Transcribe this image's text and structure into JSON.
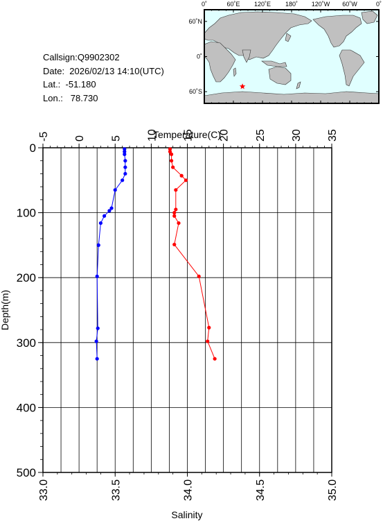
{
  "info": {
    "callsign": "Callsign:Q9902302",
    "date": "Date:  2026/02/13 14:10(UTC)",
    "lat": "Lat.:  -51.180",
    "lon": "Lon.:   78.730"
  },
  "map": {
    "top_labels": [
      "0˚",
      "60˚E",
      "120˚E",
      "180˚",
      "120˚W",
      "60˚W",
      "0˚"
    ],
    "side_labels": [
      "60˚N",
      "0˚",
      "60˚S"
    ],
    "marker": {
      "lat": -51.18,
      "lon": 78.73,
      "color": "#ff0000"
    },
    "land_color": "#c0c0c0",
    "ocean_color": "#e0ffff"
  },
  "chart_data": {
    "type": "line",
    "xlabel_top": "Temperature(C)",
    "xlabel_bottom": "Salinity",
    "ylabel": "Depth(m)",
    "temp_ticks": [
      "-5",
      "0",
      "5",
      "10",
      "15",
      "20",
      "25",
      "30",
      "35"
    ],
    "sal_ticks": [
      "33.0",
      "33.5",
      "34.0",
      "34.5",
      "35.0"
    ],
    "depth_ticks": [
      "0",
      "100",
      "200",
      "300",
      "400",
      "500"
    ],
    "temp_range": [
      -5,
      35
    ],
    "sal_range": [
      33.0,
      35.0
    ],
    "depth_range": [
      0,
      500
    ],
    "series": [
      {
        "axis": "temperature",
        "color": "#0000ff",
        "depth": [
          2,
          6,
          10,
          20,
          30,
          40,
          50,
          65,
          93,
          97,
          105,
          116,
          150,
          198,
          278,
          298,
          325
        ],
        "values": [
          6.3,
          6.3,
          6.3,
          6.4,
          6.4,
          6.4,
          6.0,
          5.0,
          4.5,
          4.2,
          3.5,
          3.0,
          2.7,
          2.5,
          2.6,
          2.4,
          2.5
        ]
      },
      {
        "axis": "salinity",
        "color": "#ff0000",
        "depth": [
          2,
          6,
          10,
          20,
          30,
          43,
          50,
          65,
          95,
          100,
          105,
          116,
          149,
          198,
          277,
          298,
          325
        ],
        "values": [
          33.88,
          33.88,
          33.89,
          33.89,
          33.9,
          33.96,
          33.99,
          33.92,
          33.92,
          33.91,
          33.91,
          33.94,
          33.91,
          34.08,
          34.15,
          34.14,
          34.19
        ]
      }
    ]
  }
}
